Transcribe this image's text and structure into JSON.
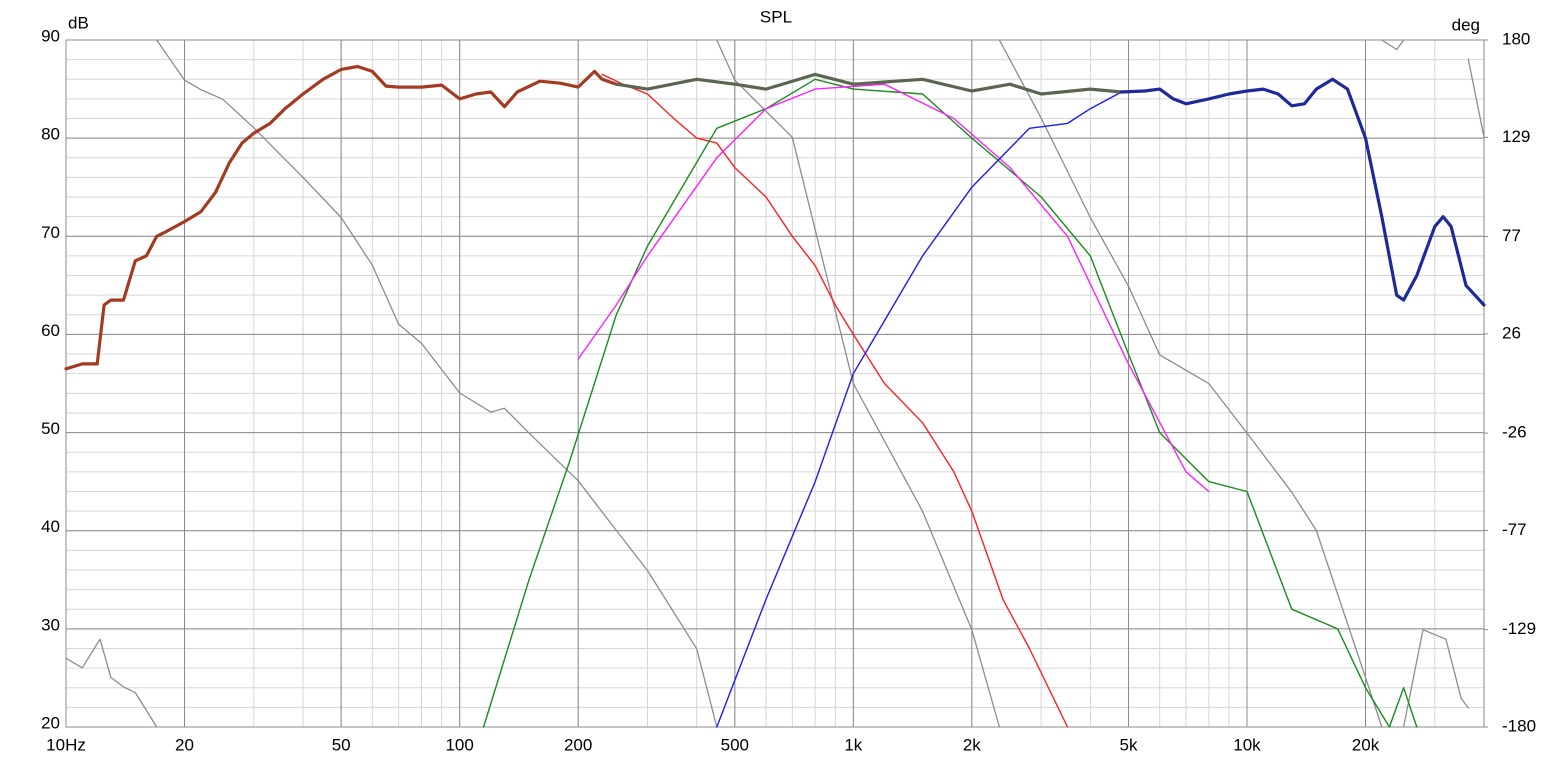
{
  "chart_data": {
    "type": "line",
    "title": "SPL",
    "ylabel": "dB",
    "y2label": "deg",
    "xscale": "log",
    "xlim": [
      10,
      40000
    ],
    "ylim": [
      20,
      90
    ],
    "y2lim": [
      -180,
      180
    ],
    "grid": true,
    "xticks": [
      {
        "value": 10,
        "label": "10Hz"
      },
      20,
      50,
      100,
      200,
      500,
      {
        "value": 1000,
        "label": "1k"
      },
      {
        "value": 2000,
        "label": "2k"
      },
      {
        "value": 5000,
        "label": "5k"
      },
      {
        "value": 10000,
        "label": "10k"
      },
      {
        "value": 20000,
        "label": "20k"
      }
    ],
    "yticks": [
      20,
      30,
      40,
      50,
      60,
      70,
      80,
      90
    ],
    "y2ticks": [
      -180,
      -129,
      -77,
      -26,
      26,
      77,
      129,
      180
    ],
    "series": [
      {
        "color": "#8c8c8c",
        "width": 1.3,
        "axis": "y2",
        "x": [
          10,
          11,
          12.2,
          13,
          14,
          15,
          17,
          17,
          17,
          20,
          22,
          25,
          30,
          40,
          50,
          60,
          70,
          80,
          100,
          120,
          130,
          150,
          200,
          250,
          300,
          400,
          450,
          450,
          450,
          500,
          700,
          1000,
          1500,
          2000,
          2350,
          2350,
          2350,
          3000,
          4000,
          5000,
          6000,
          8000,
          10000,
          13000,
          15000,
          20000,
          22000,
          22000,
          22000,
          24000,
          25000,
          25000,
          25000,
          28000,
          32000,
          35000,
          36500,
          36500,
          36500,
          40000
        ],
        "values": [
          -144,
          -149,
          -134,
          -154,
          -159,
          -162,
          -180,
          null,
          180,
          159,
          154,
          149,
          134,
          108,
          87,
          62,
          31,
          21,
          -5,
          -15,
          -13,
          -26,
          -51,
          -77,
          -98,
          -139,
          -180,
          null,
          180,
          159,
          129,
          0,
          -67,
          -129,
          -180,
          null,
          180,
          139,
          87,
          51,
          15,
          0,
          -26,
          -57,
          -77,
          -154,
          -180,
          null,
          180,
          175,
          180,
          null,
          -180,
          -129,
          -134,
          -165,
          -170,
          null,
          170,
          129
        ]
      },
      {
        "color": "#ff2020",
        "width": 1.4,
        "x": [
          230,
          260,
          300,
          350,
          400,
          450,
          500,
          600,
          700,
          800,
          900,
          1000,
          1200,
          1500,
          1800,
          2000,
          2400,
          2800,
          3500
        ],
        "values": [
          86.5,
          85.5,
          84.5,
          82,
          80,
          79.5,
          77,
          74,
          70,
          67,
          63,
          60,
          55,
          51,
          46,
          42,
          33,
          28,
          20
        ]
      },
      {
        "color": "#1a8c1a",
        "width": 1.4,
        "x": [
          115,
          150,
          190,
          250,
          300,
          380,
          450,
          600,
          800,
          1000,
          1500,
          2000,
          3000,
          4000,
          5000,
          6000,
          8000,
          10000,
          13000,
          17000,
          20000,
          23000,
          25000,
          27000
        ],
        "values": [
          20,
          35,
          47,
          62,
          69,
          76,
          81,
          83,
          86,
          85,
          84.5,
          80,
          74,
          68,
          58,
          50,
          45,
          44,
          32,
          30,
          24,
          20,
          24,
          20
        ]
      },
      {
        "color": "#ff20ff",
        "width": 1.4,
        "x": [
          200,
          250,
          300,
          450,
          600,
          800,
          1200,
          1800,
          2500,
          3500,
          5000,
          7000,
          8000
        ],
        "values": [
          57.5,
          63,
          68,
          78,
          83,
          85,
          85.5,
          82,
          77,
          70,
          57,
          46,
          44
        ]
      },
      {
        "color": "#1c1cf0",
        "width": 1.4,
        "x": [
          450,
          600,
          800,
          1000,
          1500,
          2000,
          2800,
          3500,
          4000,
          4800
        ],
        "values": [
          20,
          33,
          45,
          56,
          68,
          75,
          81,
          81.5,
          83,
          84.7
        ]
      },
      {
        "color": "#a33a22",
        "width": 3.2,
        "x": [
          10,
          11,
          12,
          12.5,
          13,
          14,
          15,
          16,
          17,
          18,
          20,
          22,
          24,
          26,
          28,
          30,
          33,
          36,
          40,
          45,
          50,
          55,
          60,
          65,
          70,
          80,
          90,
          100,
          110,
          120,
          130,
          140,
          160,
          180,
          200,
          220,
          230,
          250
        ],
        "values": [
          56.5,
          57,
          57,
          63,
          63.5,
          63.5,
          67.5,
          68,
          70,
          70.5,
          71.5,
          72.5,
          74.5,
          77.5,
          79.5,
          80.5,
          81.5,
          83,
          84.5,
          86,
          87,
          87.3,
          86.8,
          85.3,
          85.2,
          85.2,
          85.4,
          84,
          84.5,
          84.7,
          83.2,
          84.7,
          85.8,
          85.6,
          85.2,
          86.8,
          86,
          85.5
        ]
      },
      {
        "color": "#5a6650",
        "width": 3.2,
        "x": [
          250,
          300,
          400,
          500,
          600,
          800,
          1000,
          1500,
          2000,
          2500,
          3000,
          4000,
          4800
        ],
        "values": [
          85.5,
          85,
          86,
          85.5,
          85,
          86.5,
          85.5,
          86,
          84.8,
          85.5,
          84.5,
          85,
          84.7
        ]
      },
      {
        "color": "#1e2a9a",
        "width": 3.2,
        "x": [
          4800,
          5500,
          6000,
          6500,
          7000,
          8000,
          9000,
          10000,
          11000,
          12000,
          13000,
          14000,
          15000,
          16500,
          18000,
          20000,
          22000,
          24000,
          25000,
          27000,
          30000,
          31500,
          33000,
          36000,
          40000
        ],
        "values": [
          84.7,
          84.8,
          85,
          84,
          83.5,
          84,
          84.5,
          84.8,
          85,
          84.5,
          83.3,
          83.5,
          85,
          86,
          85,
          80,
          72,
          64,
          63.5,
          66,
          71,
          72,
          71,
          65,
          63
        ]
      }
    ]
  }
}
